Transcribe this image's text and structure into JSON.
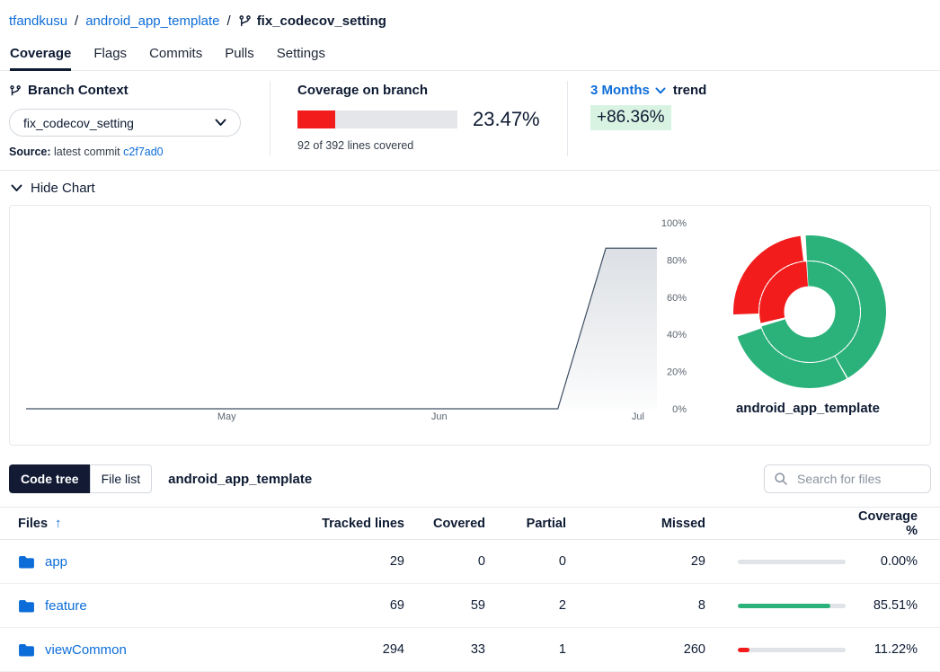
{
  "breadcrumb": {
    "owner": "tfandkusu",
    "separator": "/",
    "repo": "android_app_template",
    "branch": "fix_codecov_setting"
  },
  "tabs": {
    "items": [
      {
        "label": "Coverage",
        "active": true
      },
      {
        "label": "Flags",
        "active": false
      },
      {
        "label": "Commits",
        "active": false
      },
      {
        "label": "Pulls",
        "active": false
      },
      {
        "label": "Settings",
        "active": false
      }
    ]
  },
  "branch_context": {
    "title": "Branch Context",
    "selected_branch": "fix_codecov_setting",
    "source_label": "Source:",
    "source_text": "latest commit",
    "commit_link": "c2f7ad0"
  },
  "coverage_branch": {
    "title": "Coverage on branch",
    "percent": "23.47%",
    "percent_value": 23.47,
    "lines_detail": "92 of 392 lines covered"
  },
  "trend": {
    "period": "3 Months",
    "label": "trend",
    "value": "+86.36%"
  },
  "chart_section": {
    "toggle_label": "Hide Chart"
  },
  "chart_data": [
    {
      "type": "area",
      "name": "coverage-trend",
      "title": "Coverage over time",
      "x_ticks": [
        {
          "label": "May",
          "pos": 0.318
        },
        {
          "label": "Jun",
          "pos": 0.655
        },
        {
          "label": "Jul",
          "pos": 0.97
        }
      ],
      "y_ticks": [
        100,
        80,
        60,
        40,
        20,
        0
      ],
      "ylim": [
        0,
        100
      ],
      "points": [
        {
          "x": 0,
          "y": 0
        },
        {
          "x": 0.843,
          "y": 0
        },
        {
          "x": 0.919,
          "y": 86.36
        },
        {
          "x": 1,
          "y": 86.36
        }
      ],
      "line_color": "#3e4f63",
      "grid": false
    },
    {
      "type": "sunburst",
      "name": "coverage-sunburst",
      "label": "android_app_template",
      "hole_radius": 28,
      "rings": [
        {
          "inner": 28.5,
          "outer": 56,
          "segments": [
            {
              "start": -3,
              "end": 253,
              "color": "green"
            },
            {
              "start": 257,
              "end": 356,
              "color": "red"
            }
          ]
        },
        {
          "inner": 57,
          "outer": 85,
          "segments": [
            {
              "start": -3,
              "end": 150,
              "color": "green"
            },
            {
              "start": 151,
              "end": 251,
              "color": "green"
            },
            {
              "start": 268,
              "end": 353,
              "color": "red"
            }
          ]
        }
      ]
    }
  ],
  "explorer": {
    "toggle": [
      {
        "label": "Code tree",
        "active": true
      },
      {
        "label": "File list",
        "active": false
      }
    ],
    "repo_title": "android_app_template",
    "search_placeholder": "Search for files"
  },
  "table": {
    "columns": [
      "Files",
      "Tracked lines",
      "Covered",
      "Partial",
      "Missed",
      "Coverage %"
    ],
    "sort_icon": "up-arrow",
    "rows": [
      {
        "name": "app",
        "tracked": "29",
        "covered": "0",
        "partial": "0",
        "missed": "29",
        "coverage": "0.00%",
        "bar_pct": 0,
        "bar_color": "none"
      },
      {
        "name": "feature",
        "tracked": "69",
        "covered": "59",
        "partial": "2",
        "missed": "8",
        "coverage": "85.51%",
        "bar_pct": 85.51,
        "bar_color": "green"
      },
      {
        "name": "viewCommon",
        "tracked": "294",
        "covered": "33",
        "partial": "1",
        "missed": "260",
        "coverage": "11.22%",
        "bar_pct": 11.22,
        "bar_color": "red"
      }
    ]
  },
  "colors": {
    "link_blue": "#0d6dd8",
    "navy": "#0e1b33",
    "red": "#f21c1c",
    "green": "#2bb27a",
    "track_gray": "#e4e6ea",
    "badge_green_bg": "#d9f3e3"
  }
}
